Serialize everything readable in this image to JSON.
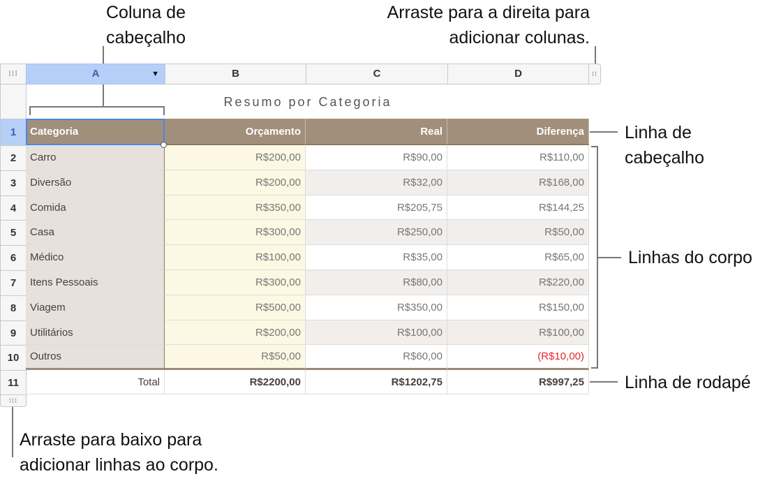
{
  "callouts": {
    "header_column": [
      "Coluna de",
      "cabeçalho"
    ],
    "drag_right": [
      "Arraste para a direita para",
      "adicionar colunas."
    ],
    "header_row": [
      "Linha de",
      "cabeçalho"
    ],
    "body_rows": "Linhas do corpo",
    "footer_row": "Linha de rodapé",
    "drag_down": [
      "Arraste para baixo para",
      "adicionar linhas ao corpo."
    ]
  },
  "columns": [
    "A",
    "B",
    "C",
    "D"
  ],
  "table_title": "Resumo por Categoria",
  "header": [
    "Categoria",
    "Orçamento",
    "Real",
    "Diferença"
  ],
  "rows": [
    [
      "Carro",
      "R$200,00",
      "R$90,00",
      "R$110,00"
    ],
    [
      "Diversão",
      "R$200,00",
      "R$32,00",
      "R$168,00"
    ],
    [
      "Comida",
      "R$350,00",
      "R$205,75",
      "R$144,25"
    ],
    [
      "Casa",
      "R$300,00",
      "R$250,00",
      "R$50,00"
    ],
    [
      "Médico",
      "R$100,00",
      "R$35,00",
      "R$65,00"
    ],
    [
      "Itens Pessoais",
      "R$300,00",
      "R$80,00",
      "R$220,00"
    ],
    [
      "Viagem",
      "R$500,00",
      "R$350,00",
      "R$150,00"
    ],
    [
      "Utilitários",
      "R$200,00",
      "R$100,00",
      "R$100,00"
    ],
    [
      "Outros",
      "R$50,00",
      "R$60,00",
      "(R$10,00)"
    ]
  ],
  "footer": [
    "Total",
    "R$2200,00",
    "R$1202,75",
    "R$997,25"
  ],
  "row_numbers": [
    "1",
    "2",
    "3",
    "4",
    "5",
    "6",
    "7",
    "8",
    "9",
    "10",
    "11"
  ],
  "colors": {
    "header_bg": "#a28f7b",
    "selection": "#b5cff8",
    "negative": "#e8262a",
    "col_a_bg": "#e6e1dd",
    "col_b_bg": "#fdf8e3"
  }
}
